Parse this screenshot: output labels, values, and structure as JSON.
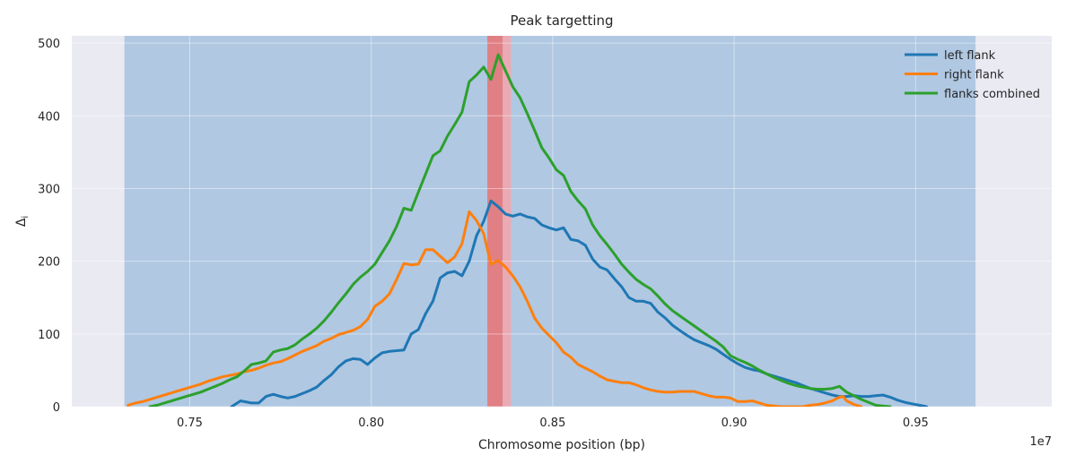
{
  "chart_data": {
    "type": "line",
    "title": "Peak targetting",
    "xlabel": "Chromosome position (bp)",
    "ylabel": "Δi",
    "x_offset_label": "1e7",
    "xlim": [
      0.7175,
      0.9875
    ],
    "ylim": [
      0,
      510
    ],
    "x_ticks": [
      0.75,
      0.8,
      0.85,
      0.9,
      0.95
    ],
    "x_tick_labels": [
      "0.75",
      "0.80",
      "0.85",
      "0.90",
      "0.95"
    ],
    "y_ticks": [
      0,
      100,
      200,
      300,
      400,
      500
    ],
    "y_tick_labels": [
      "0",
      "100",
      "200",
      "300",
      "400",
      "500"
    ],
    "grid": true,
    "legend_position": "top-right",
    "shaded_regions": [
      {
        "x0": 0.732,
        "x1": 0.9665,
        "color": "#b0c8e2"
      },
      {
        "x0": 0.832,
        "x1": 0.8385,
        "color": "#e9aab3"
      },
      {
        "x0": 0.832,
        "x1": 0.8362,
        "color": "#e07f84"
      }
    ],
    "series": [
      {
        "name": "left flank",
        "color": "#1f77b4",
        "points": [
          [
            0.7615,
            0
          ],
          [
            0.764,
            8
          ],
          [
            0.767,
            5
          ],
          [
            0.769,
            5
          ],
          [
            0.771,
            14
          ],
          [
            0.773,
            17
          ],
          [
            0.775,
            14
          ],
          [
            0.777,
            12
          ],
          [
            0.779,
            14
          ],
          [
            0.781,
            18
          ],
          [
            0.783,
            22
          ],
          [
            0.785,
            27
          ],
          [
            0.787,
            36
          ],
          [
            0.789,
            44
          ],
          [
            0.791,
            55
          ],
          [
            0.793,
            63
          ],
          [
            0.795,
            66
          ],
          [
            0.797,
            65
          ],
          [
            0.799,
            58
          ],
          [
            0.801,
            67
          ],
          [
            0.803,
            74
          ],
          [
            0.805,
            76
          ],
          [
            0.807,
            77
          ],
          [
            0.809,
            78
          ],
          [
            0.811,
            100
          ],
          [
            0.813,
            106
          ],
          [
            0.815,
            128
          ],
          [
            0.817,
            145
          ],
          [
            0.819,
            177
          ],
          [
            0.821,
            184
          ],
          [
            0.823,
            186
          ],
          [
            0.825,
            180
          ],
          [
            0.827,
            200
          ],
          [
            0.829,
            235
          ],
          [
            0.831,
            255
          ],
          [
            0.833,
            283
          ],
          [
            0.835,
            275
          ],
          [
            0.837,
            265
          ],
          [
            0.839,
            262
          ],
          [
            0.841,
            265
          ],
          [
            0.843,
            261
          ],
          [
            0.845,
            259
          ],
          [
            0.847,
            250
          ],
          [
            0.849,
            246
          ],
          [
            0.851,
            243
          ],
          [
            0.853,
            246
          ],
          [
            0.855,
            230
          ],
          [
            0.857,
            228
          ],
          [
            0.859,
            222
          ],
          [
            0.861,
            203
          ],
          [
            0.863,
            192
          ],
          [
            0.865,
            188
          ],
          [
            0.867,
            176
          ],
          [
            0.869,
            165
          ],
          [
            0.871,
            150
          ],
          [
            0.873,
            145
          ],
          [
            0.875,
            145
          ],
          [
            0.877,
            142
          ],
          [
            0.879,
            130
          ],
          [
            0.881,
            122
          ],
          [
            0.883,
            112
          ],
          [
            0.885,
            105
          ],
          [
            0.887,
            98
          ],
          [
            0.889,
            92
          ],
          [
            0.891,
            88
          ],
          [
            0.893,
            84
          ],
          [
            0.895,
            79
          ],
          [
            0.897,
            72
          ],
          [
            0.899,
            65
          ],
          [
            0.901,
            59
          ],
          [
            0.903,
            54
          ],
          [
            0.905,
            51
          ],
          [
            0.907,
            49
          ],
          [
            0.909,
            45
          ],
          [
            0.911,
            42
          ],
          [
            0.913,
            39
          ],
          [
            0.915,
            36
          ],
          [
            0.917,
            33
          ],
          [
            0.919,
            29
          ],
          [
            0.921,
            25
          ],
          [
            0.923,
            22
          ],
          [
            0.925,
            19
          ],
          [
            0.927,
            16
          ],
          [
            0.929,
            14
          ],
          [
            0.931,
            14
          ],
          [
            0.933,
            15
          ],
          [
            0.935,
            14
          ],
          [
            0.937,
            14
          ],
          [
            0.939,
            15
          ],
          [
            0.941,
            16
          ],
          [
            0.943,
            13
          ],
          [
            0.945,
            9
          ],
          [
            0.947,
            6
          ],
          [
            0.949,
            4
          ],
          [
            0.951,
            2
          ],
          [
            0.953,
            0
          ]
        ]
      },
      {
        "name": "right flank",
        "color": "#ff7f0e",
        "points": [
          [
            0.733,
            2
          ],
          [
            0.735,
            5
          ],
          [
            0.737,
            7
          ],
          [
            0.739,
            10
          ],
          [
            0.741,
            13
          ],
          [
            0.743,
            16
          ],
          [
            0.745,
            19
          ],
          [
            0.747,
            22
          ],
          [
            0.749,
            25
          ],
          [
            0.751,
            28
          ],
          [
            0.753,
            31
          ],
          [
            0.755,
            35
          ],
          [
            0.757,
            38
          ],
          [
            0.759,
            41
          ],
          [
            0.761,
            43
          ],
          [
            0.763,
            45
          ],
          [
            0.765,
            48
          ],
          [
            0.767,
            50
          ],
          [
            0.769,
            53
          ],
          [
            0.771,
            57
          ],
          [
            0.773,
            60
          ],
          [
            0.775,
            62
          ],
          [
            0.777,
            66
          ],
          [
            0.779,
            71
          ],
          [
            0.781,
            76
          ],
          [
            0.783,
            80
          ],
          [
            0.785,
            84
          ],
          [
            0.787,
            90
          ],
          [
            0.789,
            94
          ],
          [
            0.791,
            99
          ],
          [
            0.793,
            102
          ],
          [
            0.795,
            105
          ],
          [
            0.797,
            110
          ],
          [
            0.799,
            120
          ],
          [
            0.801,
            138
          ],
          [
            0.803,
            145
          ],
          [
            0.805,
            155
          ],
          [
            0.807,
            175
          ],
          [
            0.809,
            197
          ],
          [
            0.811,
            195
          ],
          [
            0.813,
            196
          ],
          [
            0.815,
            216
          ],
          [
            0.817,
            216
          ],
          [
            0.819,
            207
          ],
          [
            0.821,
            198
          ],
          [
            0.823,
            206
          ],
          [
            0.825,
            224
          ],
          [
            0.827,
            268
          ],
          [
            0.829,
            256
          ],
          [
            0.831,
            238
          ],
          [
            0.833,
            196
          ],
          [
            0.835,
            201
          ],
          [
            0.837,
            192
          ],
          [
            0.839,
            180
          ],
          [
            0.841,
            165
          ],
          [
            0.843,
            145
          ],
          [
            0.845,
            122
          ],
          [
            0.847,
            108
          ],
          [
            0.849,
            98
          ],
          [
            0.851,
            88
          ],
          [
            0.853,
            75
          ],
          [
            0.855,
            68
          ],
          [
            0.857,
            58
          ],
          [
            0.859,
            53
          ],
          [
            0.861,
            48
          ],
          [
            0.863,
            42
          ],
          [
            0.865,
            37
          ],
          [
            0.867,
            35
          ],
          [
            0.869,
            33
          ],
          [
            0.871,
            33
          ],
          [
            0.873,
            30
          ],
          [
            0.875,
            26
          ],
          [
            0.877,
            23
          ],
          [
            0.879,
            21
          ],
          [
            0.881,
            20
          ],
          [
            0.883,
            20
          ],
          [
            0.885,
            21
          ],
          [
            0.887,
            21
          ],
          [
            0.889,
            21
          ],
          [
            0.891,
            18
          ],
          [
            0.893,
            15
          ],
          [
            0.895,
            13
          ],
          [
            0.897,
            13
          ],
          [
            0.899,
            12
          ],
          [
            0.901,
            7
          ],
          [
            0.903,
            7
          ],
          [
            0.905,
            8
          ],
          [
            0.907,
            5
          ],
          [
            0.909,
            2
          ],
          [
            0.911,
            1
          ],
          [
            0.913,
            0
          ],
          [
            0.915,
            0
          ],
          [
            0.917,
            0
          ],
          [
            0.919,
            0
          ],
          [
            0.921,
            2
          ],
          [
            0.923,
            3
          ],
          [
            0.925,
            5
          ],
          [
            0.927,
            8
          ],
          [
            0.929,
            13
          ],
          [
            0.93,
            14
          ],
          [
            0.931,
            8
          ],
          [
            0.933,
            3
          ],
          [
            0.935,
            0
          ]
        ]
      },
      {
        "name": "flanks combined",
        "color": "#2ca02c",
        "points": [
          [
            0.739,
            0
          ],
          [
            0.741,
            2
          ],
          [
            0.743,
            5
          ],
          [
            0.745,
            8
          ],
          [
            0.747,
            11
          ],
          [
            0.749,
            14
          ],
          [
            0.751,
            17
          ],
          [
            0.753,
            20
          ],
          [
            0.755,
            24
          ],
          [
            0.757,
            28
          ],
          [
            0.759,
            32
          ],
          [
            0.761,
            37
          ],
          [
            0.763,
            41
          ],
          [
            0.765,
            49
          ],
          [
            0.767,
            58
          ],
          [
            0.769,
            60
          ],
          [
            0.771,
            63
          ],
          [
            0.773,
            75
          ],
          [
            0.775,
            78
          ],
          [
            0.777,
            80
          ],
          [
            0.779,
            85
          ],
          [
            0.781,
            93
          ],
          [
            0.783,
            100
          ],
          [
            0.785,
            108
          ],
          [
            0.787,
            118
          ],
          [
            0.789,
            130
          ],
          [
            0.791,
            143
          ],
          [
            0.793,
            155
          ],
          [
            0.795,
            168
          ],
          [
            0.797,
            178
          ],
          [
            0.799,
            186
          ],
          [
            0.801,
            196
          ],
          [
            0.803,
            212
          ],
          [
            0.805,
            228
          ],
          [
            0.807,
            248
          ],
          [
            0.809,
            273
          ],
          [
            0.811,
            270
          ],
          [
            0.813,
            295
          ],
          [
            0.815,
            320
          ],
          [
            0.817,
            345
          ],
          [
            0.819,
            352
          ],
          [
            0.821,
            372
          ],
          [
            0.823,
            388
          ],
          [
            0.825,
            405
          ],
          [
            0.827,
            447
          ],
          [
            0.829,
            456
          ],
          [
            0.831,
            467
          ],
          [
            0.833,
            450
          ],
          [
            0.835,
            484
          ],
          [
            0.837,
            462
          ],
          [
            0.839,
            440
          ],
          [
            0.841,
            425
          ],
          [
            0.843,
            403
          ],
          [
            0.845,
            380
          ],
          [
            0.847,
            356
          ],
          [
            0.849,
            342
          ],
          [
            0.851,
            326
          ],
          [
            0.853,
            318
          ],
          [
            0.855,
            296
          ],
          [
            0.857,
            283
          ],
          [
            0.859,
            272
          ],
          [
            0.861,
            250
          ],
          [
            0.863,
            235
          ],
          [
            0.865,
            223
          ],
          [
            0.867,
            210
          ],
          [
            0.869,
            196
          ],
          [
            0.871,
            185
          ],
          [
            0.873,
            175
          ],
          [
            0.875,
            168
          ],
          [
            0.877,
            162
          ],
          [
            0.879,
            152
          ],
          [
            0.881,
            141
          ],
          [
            0.883,
            132
          ],
          [
            0.885,
            125
          ],
          [
            0.887,
            118
          ],
          [
            0.889,
            111
          ],
          [
            0.891,
            104
          ],
          [
            0.893,
            97
          ],
          [
            0.895,
            90
          ],
          [
            0.897,
            82
          ],
          [
            0.899,
            70
          ],
          [
            0.901,
            65
          ],
          [
            0.903,
            61
          ],
          [
            0.905,
            56
          ],
          [
            0.907,
            50
          ],
          [
            0.909,
            45
          ],
          [
            0.911,
            40
          ],
          [
            0.913,
            36
          ],
          [
            0.915,
            32
          ],
          [
            0.917,
            29
          ],
          [
            0.919,
            27
          ],
          [
            0.921,
            25
          ],
          [
            0.923,
            24
          ],
          [
            0.925,
            24
          ],
          [
            0.927,
            25
          ],
          [
            0.929,
            28
          ],
          [
            0.931,
            20
          ],
          [
            0.933,
            15
          ],
          [
            0.935,
            10
          ],
          [
            0.937,
            6
          ],
          [
            0.939,
            2
          ],
          [
            0.941,
            1
          ],
          [
            0.943,
            0
          ]
        ]
      }
    ]
  }
}
